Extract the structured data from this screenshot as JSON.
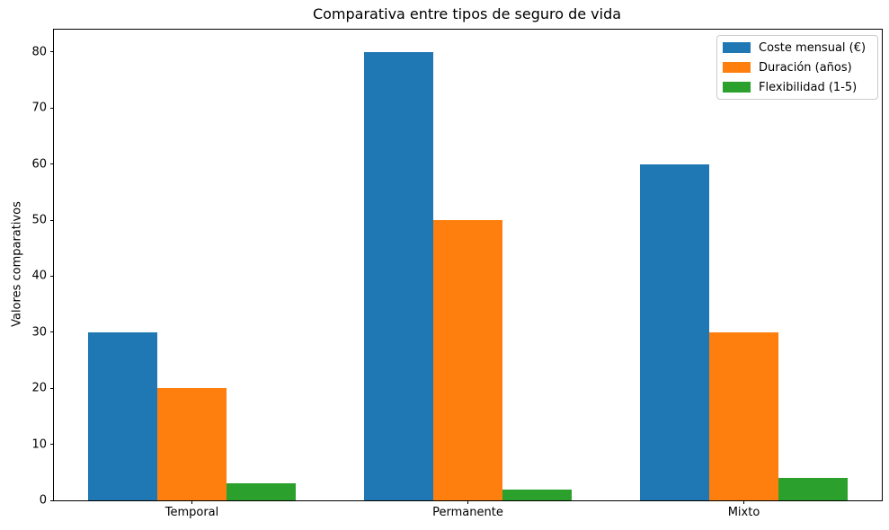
{
  "chart_data": {
    "type": "bar",
    "title": "Comparativa entre tipos de seguro de vida",
    "xlabel": "",
    "ylabel": "Valores comparativos",
    "categories": [
      "Temporal",
      "Permanente",
      "Mixto"
    ],
    "series": [
      {
        "name": "Coste mensual (€)",
        "color": "#1f77b4",
        "values": [
          30,
          80,
          60
        ]
      },
      {
        "name": "Duración (años)",
        "color": "#ff7f0e",
        "values": [
          20,
          50,
          30
        ]
      },
      {
        "name": "Flexibilidad (1-5)",
        "color": "#2ca02c",
        "values": [
          3,
          2,
          4
        ]
      }
    ],
    "xlim": [
      -0.5,
      2.5
    ],
    "ylim": [
      0,
      84
    ],
    "yticks": [
      0,
      10,
      20,
      30,
      40,
      50,
      60,
      70,
      80
    ],
    "bar_width": 0.25,
    "grid": false,
    "legend_position": "upper right",
    "background_color": "#ffffff",
    "spine_color": "#000000",
    "text_color": "#000000"
  }
}
